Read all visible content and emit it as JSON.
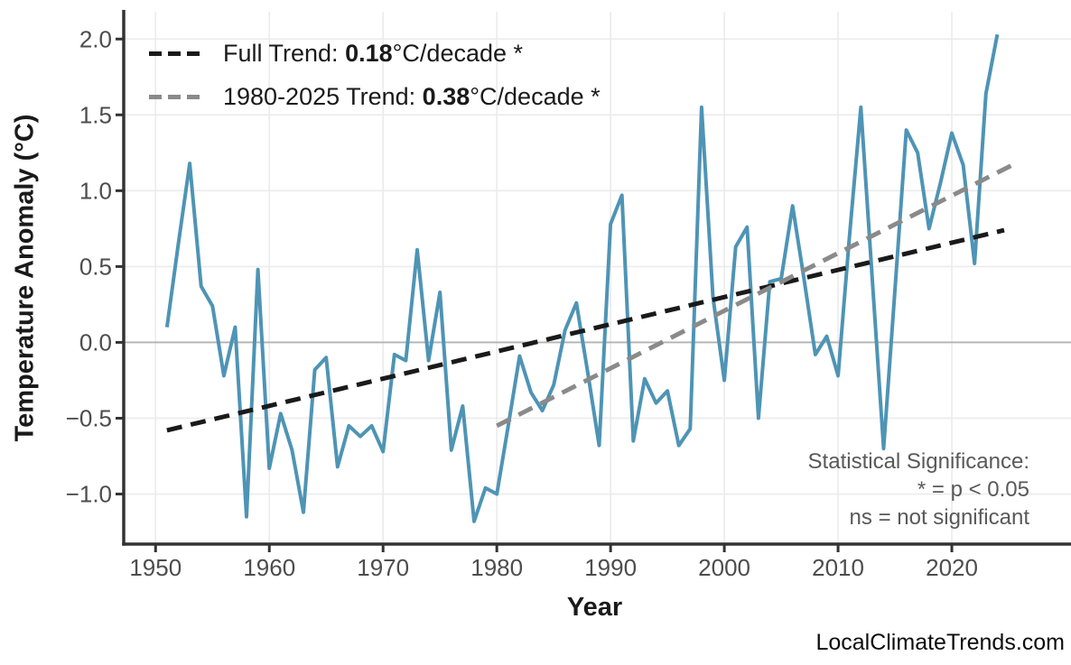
{
  "watermark": "LocalClimateTrends.com",
  "legend": {
    "items": [
      {
        "prefix": "Full Trend: ",
        "value": "0.18",
        "suffix": "°C/decade *",
        "color": "#1a1a1a"
      },
      {
        "prefix": "1980-2025 Trend: ",
        "value": "0.38",
        "suffix": "°C/decade *",
        "color": "#8a8a8a"
      }
    ]
  },
  "annotation": {
    "title": "Statistical Significance:",
    "line1": "* = p < 0.05",
    "line2": "ns = not significant"
  },
  "chart_data": {
    "type": "line",
    "title": "",
    "xlabel": "Year",
    "ylabel": "Temperature Anomaly (°C)",
    "xlim": [
      1947.2,
      2030.0
    ],
    "ylim": [
      -1.33,
      2.18
    ],
    "grid": true,
    "zero_line": 0,
    "legend_position": "top-left-inside",
    "x_ticks": [
      {
        "v": 1950,
        "label": "1950"
      },
      {
        "v": 1960,
        "label": "1960"
      },
      {
        "v": 1970,
        "label": "1970"
      },
      {
        "v": 1980,
        "label": "1980"
      },
      {
        "v": 1990,
        "label": "1990"
      },
      {
        "v": 2000,
        "label": "2000"
      },
      {
        "v": 2010,
        "label": "2010"
      },
      {
        "v": 2020,
        "label": "2020"
      }
    ],
    "y_ticks": [
      {
        "v": 2.0,
        "label": "2.0"
      },
      {
        "v": 1.5,
        "label": "1.5"
      },
      {
        "v": 1.0,
        "label": "1.0"
      },
      {
        "v": 0.5,
        "label": "0.5"
      },
      {
        "v": 0.0,
        "label": "0.0"
      },
      {
        "v": -0.5,
        "label": "−0.5"
      },
      {
        "v": -1.0,
        "label": "−1.0"
      }
    ],
    "series": [
      {
        "name": "annual-temperature-anomaly",
        "style": "solid",
        "color": "#4e94b5",
        "x": [
          1951,
          1952,
          1953,
          1954,
          1955,
          1956,
          1957,
          1958,
          1959,
          1960,
          1961,
          1962,
          1963,
          1964,
          1965,
          1966,
          1967,
          1968,
          1969,
          1970,
          1971,
          1972,
          1973,
          1974,
          1975,
          1976,
          1977,
          1978,
          1979,
          1980,
          1981,
          1982,
          1983,
          1984,
          1985,
          1986,
          1987,
          1988,
          1989,
          1990,
          1991,
          1992,
          1993,
          1994,
          1995,
          1996,
          1997,
          1998,
          1999,
          2000,
          2001,
          2002,
          2003,
          2004,
          2005,
          2006,
          2007,
          2008,
          2009,
          2010,
          2011,
          2012,
          2013,
          2014,
          2015,
          2016,
          2017,
          2018,
          2019,
          2020,
          2021,
          2022,
          2023,
          2024
        ],
        "values": [
          0.1,
          0.65,
          1.18,
          0.37,
          0.24,
          -0.22,
          0.1,
          -1.15,
          0.48,
          -0.83,
          -0.47,
          -0.71,
          -1.12,
          -0.18,
          -0.1,
          -0.82,
          -0.55,
          -0.62,
          -0.55,
          -0.72,
          -0.08,
          -0.12,
          0.61,
          -0.12,
          0.33,
          -0.71,
          -0.42,
          -1.18,
          -0.96,
          -1.0,
          -0.55,
          -0.09,
          -0.33,
          -0.45,
          -0.28,
          0.08,
          0.26,
          -0.2,
          -0.68,
          0.78,
          0.97,
          -0.65,
          -0.24,
          -0.4,
          -0.32,
          -0.68,
          -0.57,
          1.55,
          0.3,
          -0.25,
          0.63,
          0.76,
          -0.5,
          0.4,
          0.42,
          0.9,
          0.42,
          -0.08,
          0.04,
          -0.22,
          0.7,
          1.55,
          0.42,
          -0.7,
          0.35,
          1.4,
          1.25,
          0.75,
          1.05,
          1.38,
          1.17,
          0.52,
          1.64,
          2.03
        ]
      },
      {
        "name": "full-trend",
        "style": "dashed",
        "color": "#1a1a1a",
        "slope_per_decade": 0.18,
        "significant": true,
        "x": [
          1951,
          2024.6
        ],
        "values": [
          -0.58,
          0.74
        ]
      },
      {
        "name": "trend-1980-2025",
        "style": "dashed",
        "color": "#8a8a8a",
        "slope_per_decade": 0.38,
        "significant": true,
        "x": [
          1980,
          2025.6
        ],
        "values": [
          -0.55,
          1.18
        ]
      }
    ]
  }
}
